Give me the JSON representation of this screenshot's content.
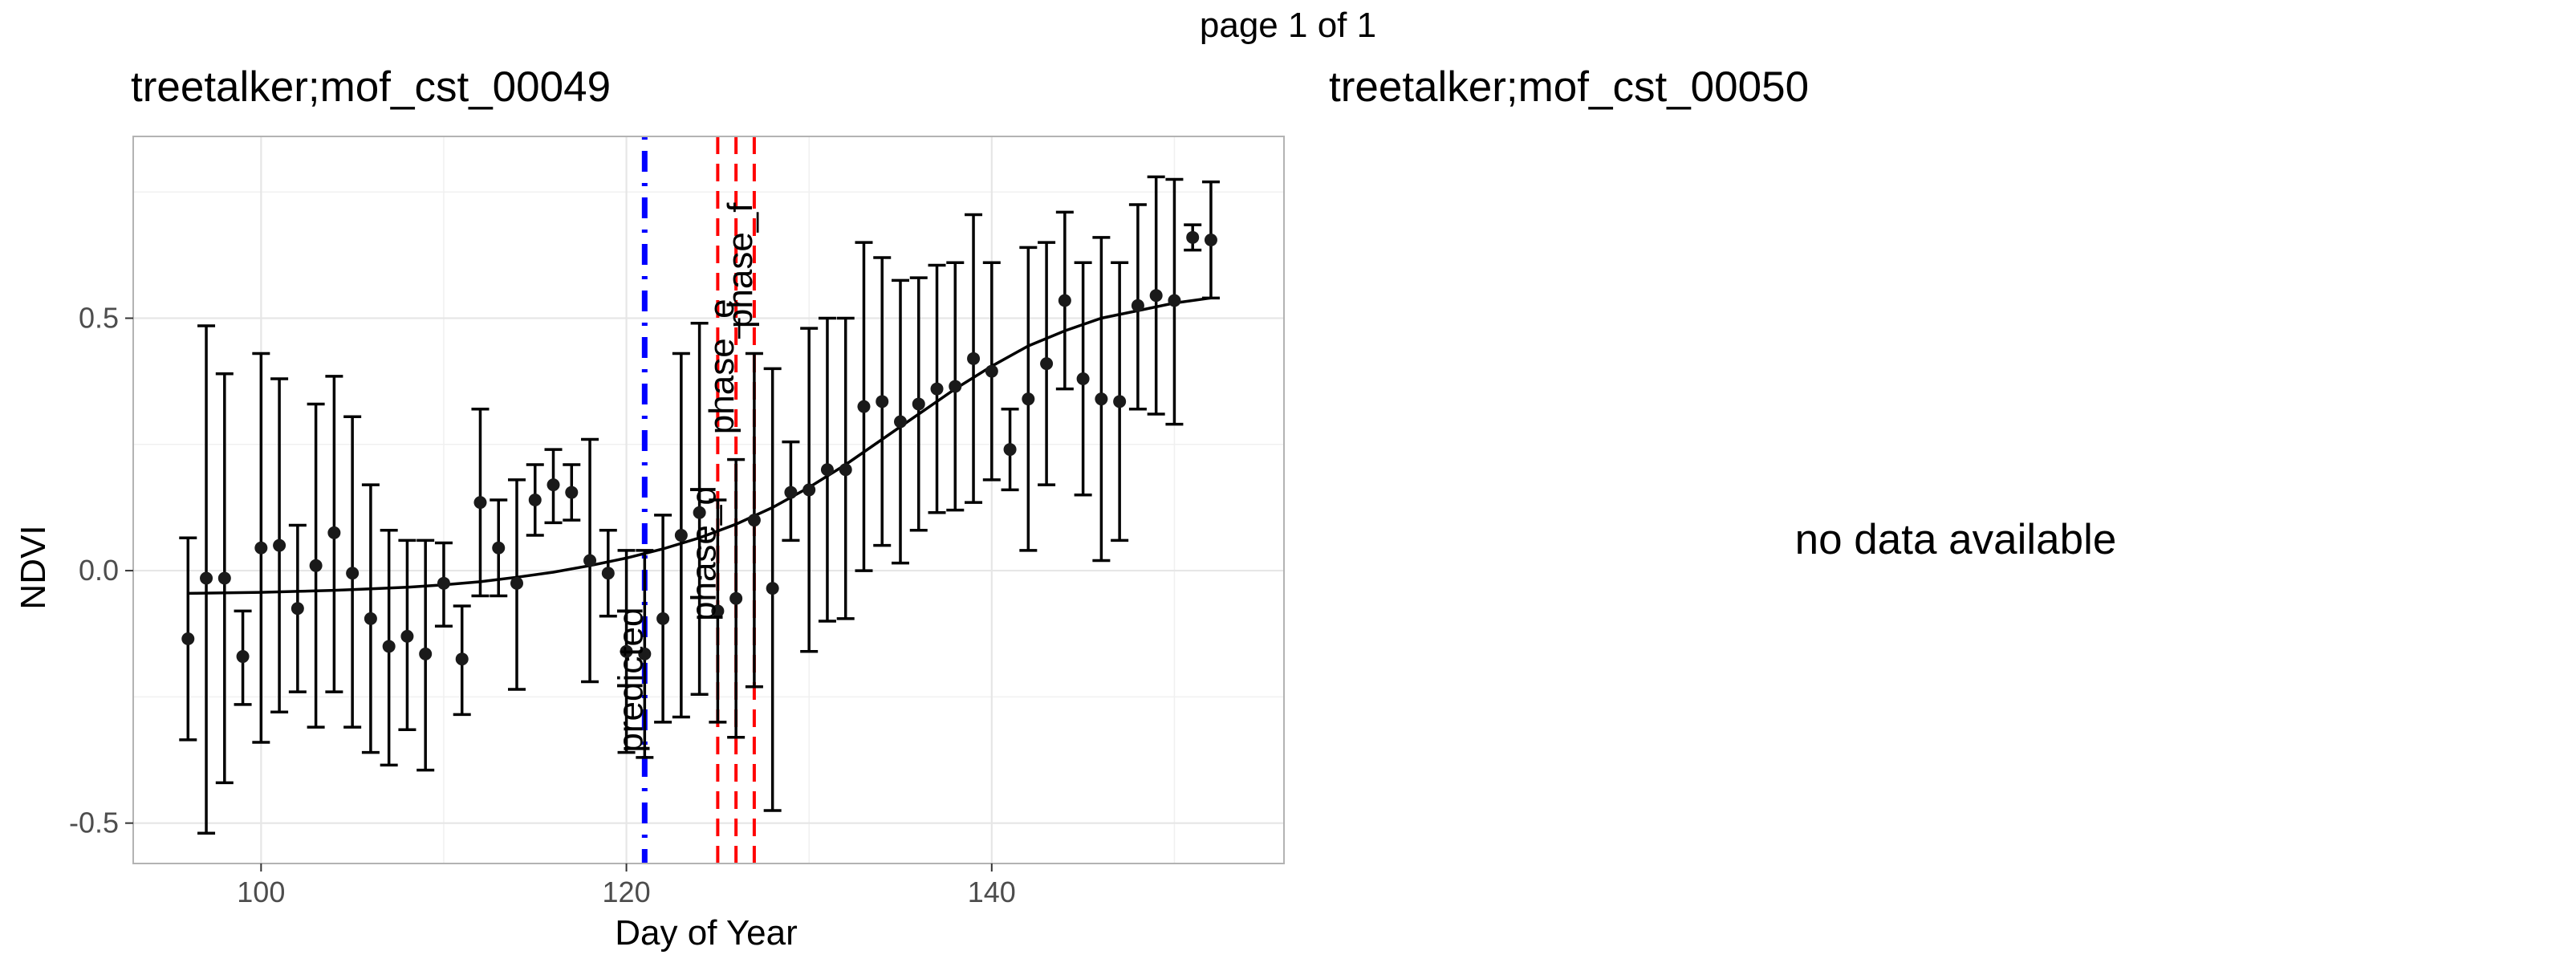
{
  "page_label": "page 1 of 1",
  "panels": [
    {
      "title": "treetalker;mof_cst_00049"
    },
    {
      "title": "treetalker;mof_cst_00050",
      "message": "no data available"
    }
  ],
  "chart_data": {
    "type": "scatter",
    "title": "treetalker;mof_cst_00049",
    "xlabel": "Day of Year",
    "ylabel": "NDVI",
    "xlim": [
      93,
      156
    ],
    "ylim": [
      -0.58,
      0.86
    ],
    "x_ticks": [
      100,
      120,
      140
    ],
    "y_ticks": [
      -0.5,
      0.0,
      0.5
    ],
    "y_tick_labels": [
      "-0.5",
      "0.0",
      "0.5"
    ],
    "grid": true,
    "colors": {
      "points": "#1a1a1a",
      "predicted": "#0000ff",
      "phase": "#ff0000",
      "grid": "#e6e6e6"
    },
    "points": [
      {
        "x": 96,
        "y": -0.135,
        "lo": -0.335,
        "hi": 0.065
      },
      {
        "x": 97,
        "y": -0.015,
        "lo": -0.52,
        "hi": 0.485
      },
      {
        "x": 98,
        "y": -0.015,
        "lo": -0.42,
        "hi": 0.39
      },
      {
        "x": 99,
        "y": -0.17,
        "lo": -0.265,
        "hi": -0.08
      },
      {
        "x": 100,
        "y": 0.045,
        "lo": -0.34,
        "hi": 0.43
      },
      {
        "x": 101,
        "y": 0.05,
        "lo": -0.28,
        "hi": 0.38
      },
      {
        "x": 102,
        "y": -0.075,
        "lo": -0.24,
        "hi": 0.09
      },
      {
        "x": 103,
        "y": 0.01,
        "lo": -0.31,
        "hi": 0.33
      },
      {
        "x": 104,
        "y": 0.075,
        "lo": -0.24,
        "hi": 0.385
      },
      {
        "x": 105,
        "y": -0.005,
        "lo": -0.31,
        "hi": 0.305
      },
      {
        "x": 106,
        "y": -0.095,
        "lo": -0.36,
        "hi": 0.17
      },
      {
        "x": 107,
        "y": -0.15,
        "lo": -0.385,
        "hi": 0.08
      },
      {
        "x": 108,
        "y": -0.13,
        "lo": -0.315,
        "hi": 0.06
      },
      {
        "x": 109,
        "y": -0.165,
        "lo": -0.395,
        "hi": 0.06
      },
      {
        "x": 110,
        "y": -0.025,
        "lo": -0.11,
        "hi": 0.055
      },
      {
        "x": 111,
        "y": -0.175,
        "lo": -0.285,
        "hi": -0.07
      },
      {
        "x": 112,
        "y": 0.135,
        "lo": -0.05,
        "hi": 0.32
      },
      {
        "x": 113,
        "y": 0.045,
        "lo": -0.05,
        "hi": 0.14
      },
      {
        "x": 114,
        "y": -0.025,
        "lo": -0.235,
        "hi": 0.18
      },
      {
        "x": 115,
        "y": 0.14,
        "lo": 0.07,
        "hi": 0.21
      },
      {
        "x": 116,
        "y": 0.17,
        "lo": 0.095,
        "hi": 0.24
      },
      {
        "x": 117,
        "y": 0.155,
        "lo": 0.1,
        "hi": 0.21
      },
      {
        "x": 118,
        "y": 0.02,
        "lo": -0.22,
        "hi": 0.26
      },
      {
        "x": 119,
        "y": -0.005,
        "lo": -0.09,
        "hi": 0.08
      },
      {
        "x": 120,
        "y": -0.16,
        "lo": -0.36,
        "hi": 0.04
      },
      {
        "x": 121,
        "y": -0.165,
        "lo": -0.37,
        "hi": 0.04
      },
      {
        "x": 122,
        "y": -0.095,
        "lo": -0.3,
        "hi": 0.11
      },
      {
        "x": 123,
        "y": 0.07,
        "lo": -0.29,
        "hi": 0.43
      },
      {
        "x": 124,
        "y": 0.115,
        "lo": -0.245,
        "hi": 0.49
      },
      {
        "x": 125,
        "y": -0.08,
        "lo": -0.3,
        "hi": 0.14
      },
      {
        "x": 126,
        "y": -0.055,
        "lo": -0.33,
        "hi": 0.22
      },
      {
        "x": 127,
        "y": 0.1,
        "lo": -0.23,
        "hi": 0.43
      },
      {
        "x": 128,
        "y": -0.035,
        "lo": -0.475,
        "hi": 0.4
      },
      {
        "x": 129,
        "y": 0.155,
        "lo": 0.06,
        "hi": 0.255
      },
      {
        "x": 130,
        "y": 0.16,
        "lo": -0.16,
        "hi": 0.48
      },
      {
        "x": 131,
        "y": 0.2,
        "lo": -0.1,
        "hi": 0.5
      },
      {
        "x": 132,
        "y": 0.2,
        "lo": -0.095,
        "hi": 0.5
      },
      {
        "x": 133,
        "y": 0.325,
        "lo": 0.0,
        "hi": 0.65
      },
      {
        "x": 134,
        "y": 0.335,
        "lo": 0.05,
        "hi": 0.62
      },
      {
        "x": 135,
        "y": 0.295,
        "lo": 0.015,
        "hi": 0.575
      },
      {
        "x": 136,
        "y": 0.33,
        "lo": 0.08,
        "hi": 0.58
      },
      {
        "x": 137,
        "y": 0.36,
        "lo": 0.115,
        "hi": 0.605
      },
      {
        "x": 138,
        "y": 0.365,
        "lo": 0.12,
        "hi": 0.61
      },
      {
        "x": 139,
        "y": 0.42,
        "lo": 0.135,
        "hi": 0.705
      },
      {
        "x": 140,
        "y": 0.395,
        "lo": 0.18,
        "hi": 0.61
      },
      {
        "x": 141,
        "y": 0.24,
        "lo": 0.16,
        "hi": 0.32
      },
      {
        "x": 142,
        "y": 0.34,
        "lo": 0.04,
        "hi": 0.64
      },
      {
        "x": 143,
        "y": 0.41,
        "lo": 0.17,
        "hi": 0.65
      },
      {
        "x": 144,
        "y": 0.535,
        "lo": 0.36,
        "hi": 0.71
      },
      {
        "x": 145,
        "y": 0.38,
        "lo": 0.15,
        "hi": 0.61
      },
      {
        "x": 146,
        "y": 0.34,
        "lo": 0.02,
        "hi": 0.66
      },
      {
        "x": 147,
        "y": 0.335,
        "lo": 0.06,
        "hi": 0.61
      },
      {
        "x": 148,
        "y": 0.525,
        "lo": 0.32,
        "hi": 0.725
      },
      {
        "x": 149,
        "y": 0.545,
        "lo": 0.31,
        "hi": 0.78
      },
      {
        "x": 150,
        "y": 0.535,
        "lo": 0.29,
        "hi": 0.775
      },
      {
        "x": 151,
        "y": 0.66,
        "lo": 0.635,
        "hi": 0.685
      },
      {
        "x": 152,
        "y": 0.655,
        "lo": 0.54,
        "hi": 0.77
      }
    ],
    "fit_curve": {
      "x": [
        96,
        98,
        100,
        102,
        104,
        106,
        108,
        110,
        112,
        114,
        116,
        118,
        120,
        122,
        124,
        126,
        128,
        130,
        132,
        134,
        136,
        138,
        140,
        142,
        144,
        146,
        148,
        150,
        152
      ],
      "y": [
        -0.045,
        -0.044,
        -0.043,
        -0.041,
        -0.039,
        -0.036,
        -0.033,
        -0.028,
        -0.022,
        -0.013,
        -0.003,
        0.01,
        0.025,
        0.043,
        0.065,
        0.092,
        0.125,
        0.165,
        0.21,
        0.26,
        0.31,
        0.36,
        0.405,
        0.445,
        0.475,
        0.5,
        0.515,
        0.53,
        0.54
      ]
    },
    "vlines": [
      {
        "label": "predicted",
        "x": 121,
        "style": "dotdash",
        "color": "#0000ff"
      },
      {
        "label": "phase_d",
        "x": 125,
        "style": "dashed",
        "color": "#ff0000"
      },
      {
        "label": "phase_e",
        "x": 126,
        "style": "dashed",
        "color": "#ff0000"
      },
      {
        "label": "phase_f",
        "x": 127,
        "style": "dashed",
        "color": "#ff0000"
      }
    ]
  }
}
